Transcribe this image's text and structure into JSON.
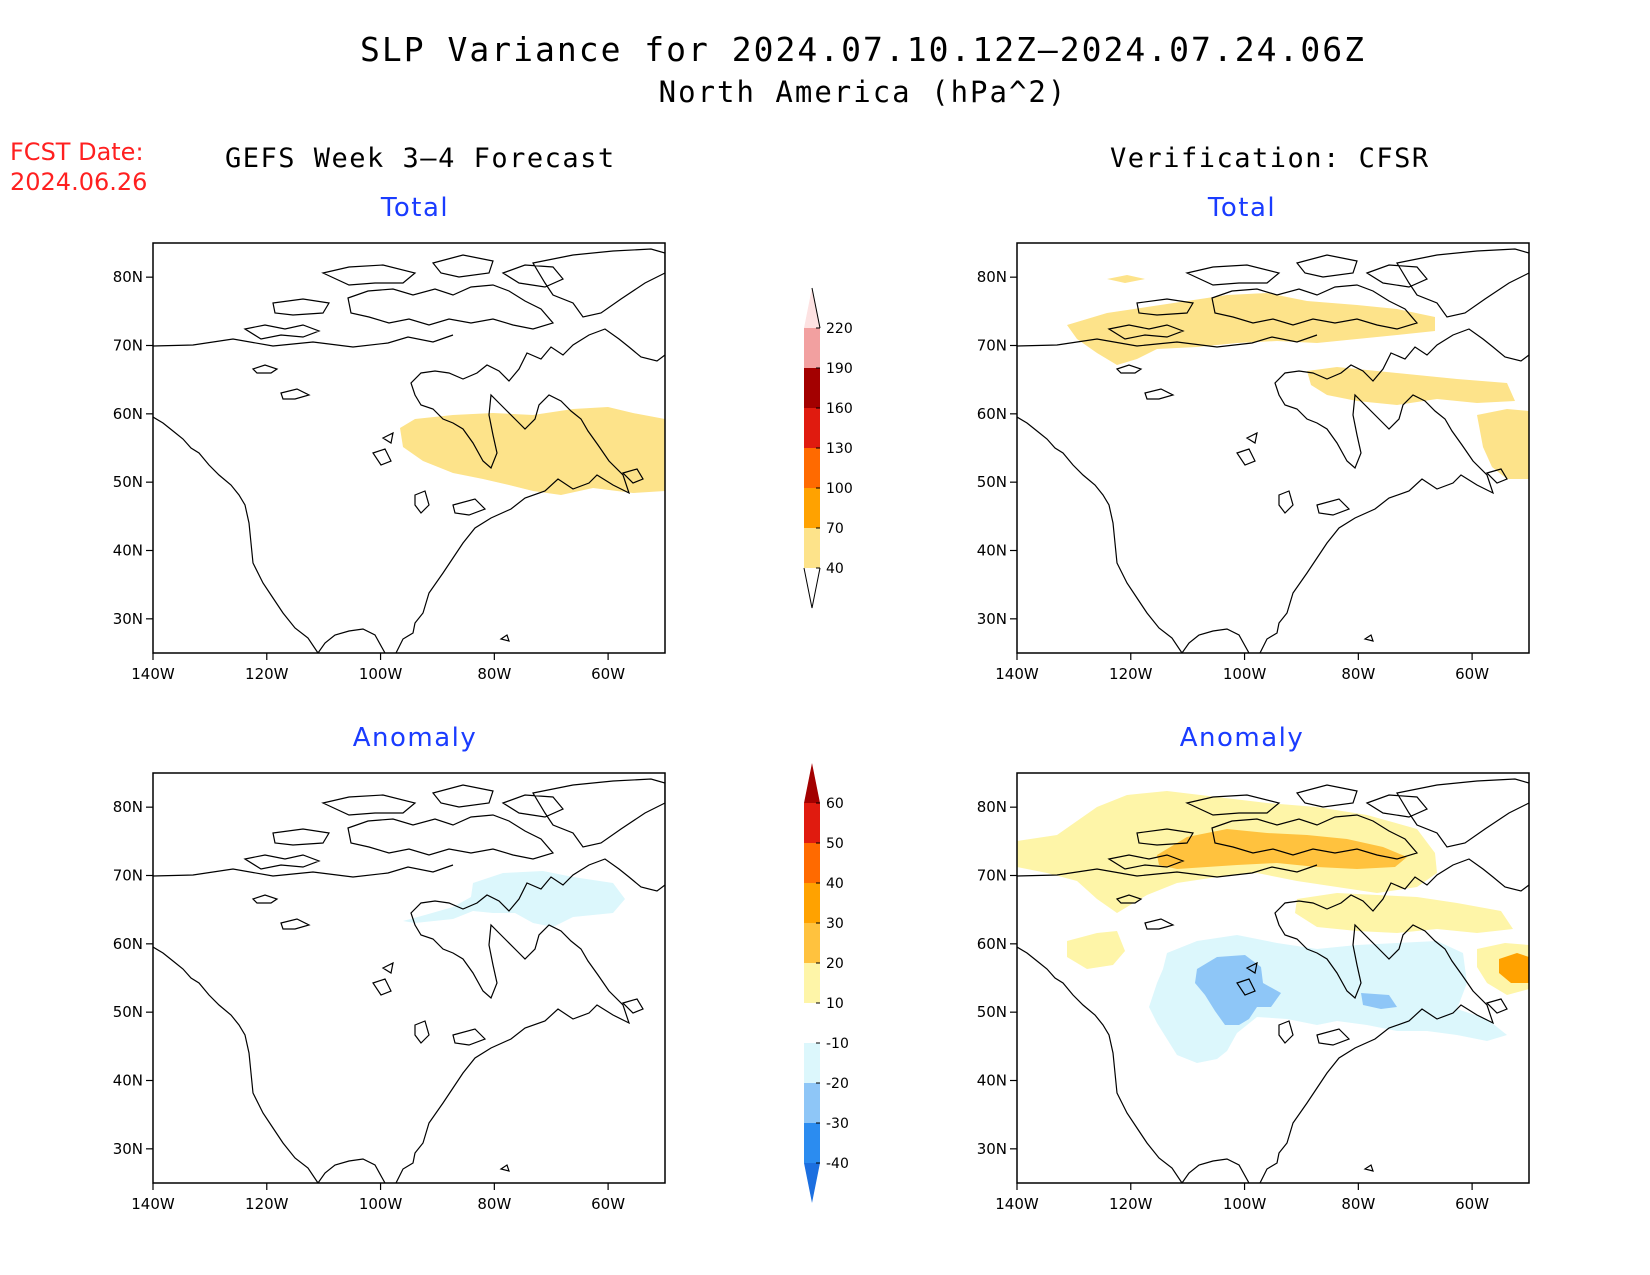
{
  "title": "SLP Variance for 2024.07.10.12Z–2024.07.24.06Z",
  "subtitle": "North America (hPa^2)",
  "fcst_label": "FCST Date:",
  "fcst_date": "2024.06.26",
  "columns": {
    "left": "GEFS Week 3–4 Forecast",
    "right": "Verification: CFSR"
  },
  "panels": {
    "top_left": "Total",
    "top_right": "Total",
    "bottom_left": "Anomaly",
    "bottom_right": "Anomaly"
  },
  "axes": {
    "lat_labels": [
      "80N",
      "70N",
      "60N",
      "50N",
      "40N",
      "30N"
    ],
    "lon_labels": [
      "140W",
      "120W",
      "100W",
      "80W",
      "60W"
    ]
  },
  "colorbar_total": {
    "levels": [
      "40",
      "70",
      "100",
      "130",
      "160",
      "190",
      "220"
    ],
    "colors": [
      "#fde38a",
      "#ffa200",
      "#ff6a00",
      "#e01b0f",
      "#a30000",
      "#f2a0a0",
      "#fde2e2"
    ]
  },
  "colorbar_anomaly": {
    "levels": [
      "-40",
      "-30",
      "-20",
      "-10",
      "10",
      "20",
      "30",
      "40",
      "50",
      "60"
    ],
    "colors": [
      "#1c6fe0",
      "#2b8cf0",
      "#8ec6f7",
      "#dcf7fc",
      "#ffffff",
      "#fef5a8",
      "#ffc23e",
      "#ffa200",
      "#ff6a00",
      "#e01b0f",
      "#a30000"
    ]
  },
  "chart_data": [
    {
      "type": "map",
      "panel": "GEFS Week 3–4 Forecast / Total",
      "lon_range": [
        "140W",
        "50W"
      ],
      "lat_range": [
        "25N",
        "85N"
      ]
    },
    {
      "type": "map",
      "panel": "Verification: CFSR / Total",
      "lon_range": [
        "140W",
        "50W"
      ],
      "lat_range": [
        "25N",
        "85N"
      ]
    },
    {
      "type": "map",
      "panel": "GEFS Week 3–4 Forecast / Anomaly",
      "lon_range": [
        "140W",
        "50W"
      ],
      "lat_range": [
        "25N",
        "85N"
      ]
    },
    {
      "type": "map",
      "panel": "Verification: CFSR / Anomaly",
      "lon_range": [
        "140W",
        "50W"
      ],
      "lat_range": [
        "25N",
        "85N"
      ]
    }
  ]
}
